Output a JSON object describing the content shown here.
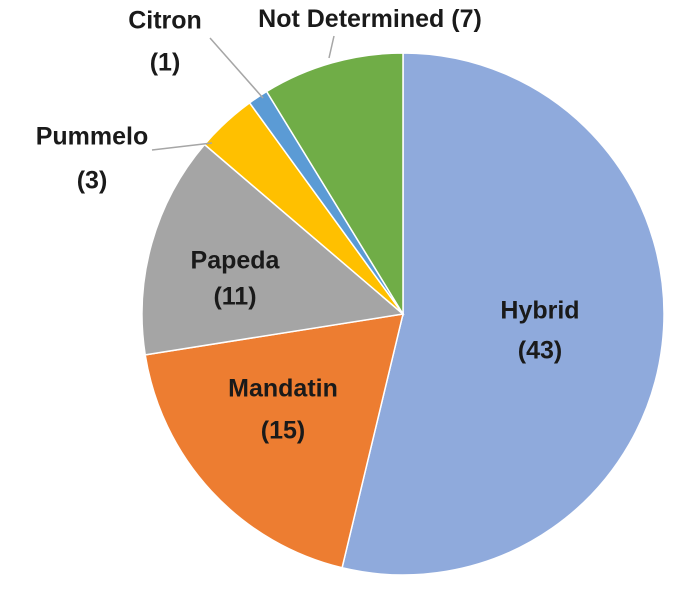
{
  "chart_data": {
    "type": "pie",
    "categories": [
      "Hybrid",
      "Mandatin",
      "Papeda",
      "Pummelo",
      "Citron",
      "Not Determined"
    ],
    "values": [
      43,
      15,
      11,
      3,
      1,
      7
    ],
    "value_labels": [
      "(43)",
      "(15)",
      "(11)",
      "(3)",
      "(1)",
      "(7)"
    ],
    "colors": [
      "#8faadc",
      "#ed7d31",
      "#a5a5a5",
      "#ffc000",
      "#5b9bd5",
      "#70ad47"
    ]
  }
}
